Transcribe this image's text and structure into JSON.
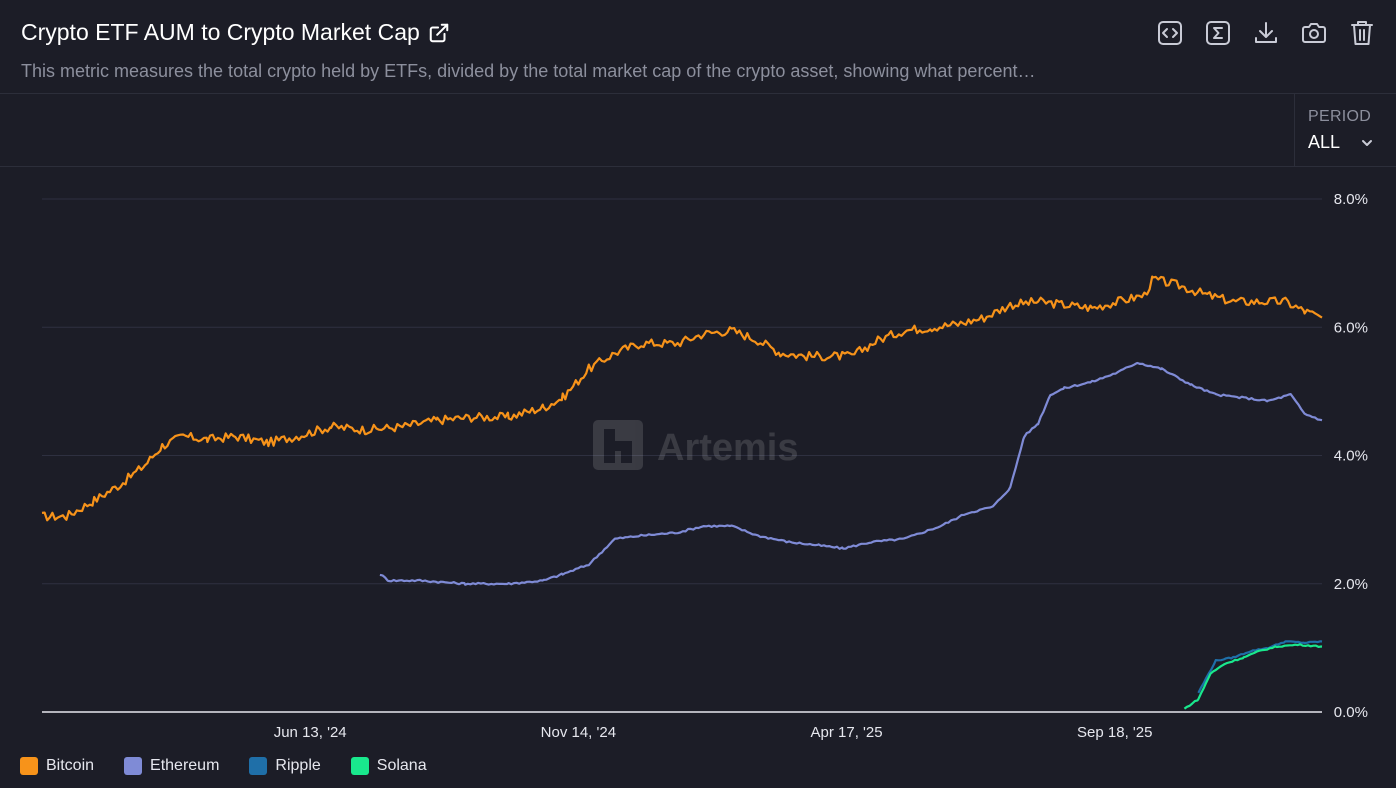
{
  "header": {
    "title": "Crypto ETF AUM to Crypto Market Cap",
    "subtitle": "This metric measures the total crypto held by ETFs, divided by the total market cap of the crypto asset, showing what percent…"
  },
  "toolbar": {
    "icons": [
      "embed-icon",
      "sum-icon",
      "download-icon",
      "camera-icon",
      "trash-icon"
    ]
  },
  "period": {
    "label": "PERIOD",
    "value": "ALL"
  },
  "watermark": "Artemis",
  "colors": {
    "background": "#1c1d27",
    "Bitcoin": "#f7931a",
    "Ethereum": "#7f8bd6",
    "Ripple": "#1f6fa8",
    "Solana": "#19e88d"
  },
  "chart_data": {
    "type": "line",
    "title": "Crypto ETF AUM to Crypto Market Cap",
    "x_range": [
      "2024-01-11",
      "2026-01-15"
    ],
    "ylim": [
      0,
      8
    ],
    "y_ticks": [
      {
        "value": 8,
        "label": "8.0%"
      },
      {
        "value": 6,
        "label": "6.0%"
      },
      {
        "value": 4,
        "label": "4.0%"
      },
      {
        "value": 2,
        "label": "2.0%"
      },
      {
        "value": 0,
        "label": "0.0%"
      }
    ],
    "x_ticks": [
      {
        "date": "2024-06-13",
        "label": "Jun 13, '24"
      },
      {
        "date": "2024-11-14",
        "label": "Nov 14, '24"
      },
      {
        "date": "2025-04-17",
        "label": "Apr 17, '25"
      },
      {
        "date": "2025-09-18",
        "label": "Sep 18, '25"
      }
    ],
    "grid": true,
    "legend_position": "bottom-left",
    "series": [
      {
        "name": "Bitcoin",
        "points": [
          [
            "2024-01-11",
            3.05
          ],
          [
            "2024-01-25",
            3.05
          ],
          [
            "2024-02-10",
            3.3
          ],
          [
            "2024-02-25",
            3.55
          ],
          [
            "2024-03-10",
            3.85
          ],
          [
            "2024-03-20",
            4.15
          ],
          [
            "2024-04-01",
            4.3
          ],
          [
            "2024-04-15",
            4.25
          ],
          [
            "2024-05-01",
            4.3
          ],
          [
            "2024-05-20",
            4.2
          ],
          [
            "2024-06-05",
            4.3
          ],
          [
            "2024-06-25",
            4.45
          ],
          [
            "2024-07-15",
            4.4
          ],
          [
            "2024-08-05",
            4.45
          ],
          [
            "2024-08-25",
            4.55
          ],
          [
            "2024-09-15",
            4.6
          ],
          [
            "2024-10-05",
            4.6
          ],
          [
            "2024-10-25",
            4.75
          ],
          [
            "2024-11-05",
            4.9
          ],
          [
            "2024-11-20",
            5.35
          ],
          [
            "2024-12-05",
            5.6
          ],
          [
            "2024-12-20",
            5.75
          ],
          [
            "2025-01-10",
            5.75
          ],
          [
            "2025-01-25",
            5.9
          ],
          [
            "2025-02-10",
            5.95
          ],
          [
            "2025-02-25",
            5.8
          ],
          [
            "2025-03-10",
            5.6
          ],
          [
            "2025-03-25",
            5.55
          ],
          [
            "2025-04-10",
            5.55
          ],
          [
            "2025-04-20",
            5.55
          ],
          [
            "2025-05-05",
            5.8
          ],
          [
            "2025-05-20",
            5.95
          ],
          [
            "2025-06-05",
            6.0
          ],
          [
            "2025-06-20",
            6.05
          ],
          [
            "2025-07-05",
            6.15
          ],
          [
            "2025-07-20",
            6.35
          ],
          [
            "2025-08-05",
            6.4
          ],
          [
            "2025-08-20",
            6.35
          ],
          [
            "2025-09-05",
            6.3
          ],
          [
            "2025-09-20",
            6.4
          ],
          [
            "2025-10-05",
            6.5
          ],
          [
            "2025-10-10",
            6.75
          ],
          [
            "2025-10-25",
            6.65
          ],
          [
            "2025-11-10",
            6.5
          ],
          [
            "2025-11-25",
            6.4
          ],
          [
            "2025-12-10",
            6.4
          ],
          [
            "2025-12-25",
            6.4
          ],
          [
            "2026-01-05",
            6.25
          ],
          [
            "2026-01-15",
            6.15
          ]
        ]
      },
      {
        "name": "Ethereum",
        "points": [
          [
            "2024-07-23",
            2.15
          ],
          [
            "2024-07-28",
            2.05
          ],
          [
            "2024-08-15",
            2.05
          ],
          [
            "2024-09-10",
            2.0
          ],
          [
            "2024-10-05",
            2.0
          ],
          [
            "2024-10-25",
            2.05
          ],
          [
            "2024-11-05",
            2.15
          ],
          [
            "2024-11-20",
            2.3
          ],
          [
            "2024-12-05",
            2.7
          ],
          [
            "2024-12-20",
            2.75
          ],
          [
            "2025-01-10",
            2.8
          ],
          [
            "2025-01-25",
            2.9
          ],
          [
            "2025-02-10",
            2.9
          ],
          [
            "2025-02-25",
            2.75
          ],
          [
            "2025-03-15",
            2.65
          ],
          [
            "2025-04-01",
            2.6
          ],
          [
            "2025-04-15",
            2.55
          ],
          [
            "2025-05-01",
            2.65
          ],
          [
            "2025-05-20",
            2.7
          ],
          [
            "2025-06-10",
            2.9
          ],
          [
            "2025-06-25",
            3.1
          ],
          [
            "2025-07-10",
            3.2
          ],
          [
            "2025-07-20",
            3.5
          ],
          [
            "2025-07-28",
            4.3
          ],
          [
            "2025-08-05",
            4.5
          ],
          [
            "2025-08-12",
            4.95
          ],
          [
            "2025-08-20",
            5.05
          ],
          [
            "2025-09-05",
            5.15
          ],
          [
            "2025-09-20",
            5.3
          ],
          [
            "2025-10-01",
            5.45
          ],
          [
            "2025-10-15",
            5.35
          ],
          [
            "2025-11-01",
            5.1
          ],
          [
            "2025-11-15",
            4.95
          ],
          [
            "2025-12-01",
            4.9
          ],
          [
            "2025-12-15",
            4.85
          ],
          [
            "2025-12-28",
            4.95
          ],
          [
            "2026-01-05",
            4.65
          ],
          [
            "2026-01-15",
            4.55
          ]
        ]
      },
      {
        "name": "Ripple",
        "points": [
          [
            "2025-11-05",
            0.3
          ],
          [
            "2025-11-15",
            0.8
          ],
          [
            "2025-11-25",
            0.85
          ],
          [
            "2025-12-05",
            0.95
          ],
          [
            "2025-12-15",
            1.0
          ],
          [
            "2025-12-25",
            1.1
          ],
          [
            "2026-01-05",
            1.08
          ],
          [
            "2026-01-15",
            1.1
          ]
        ]
      },
      {
        "name": "Solana",
        "points": [
          [
            "2025-10-28",
            0.05
          ],
          [
            "2025-11-05",
            0.2
          ],
          [
            "2025-11-12",
            0.6
          ],
          [
            "2025-11-20",
            0.75
          ],
          [
            "2025-12-01",
            0.85
          ],
          [
            "2025-12-10",
            0.95
          ],
          [
            "2025-12-20",
            1.02
          ],
          [
            "2026-01-01",
            1.05
          ],
          [
            "2026-01-15",
            1.02
          ]
        ]
      }
    ]
  },
  "legend": [
    {
      "name": "Bitcoin",
      "color": "#f7931a"
    },
    {
      "name": "Ethereum",
      "color": "#7f8bd6"
    },
    {
      "name": "Ripple",
      "color": "#1f6fa8"
    },
    {
      "name": "Solana",
      "color": "#19e88d"
    }
  ]
}
